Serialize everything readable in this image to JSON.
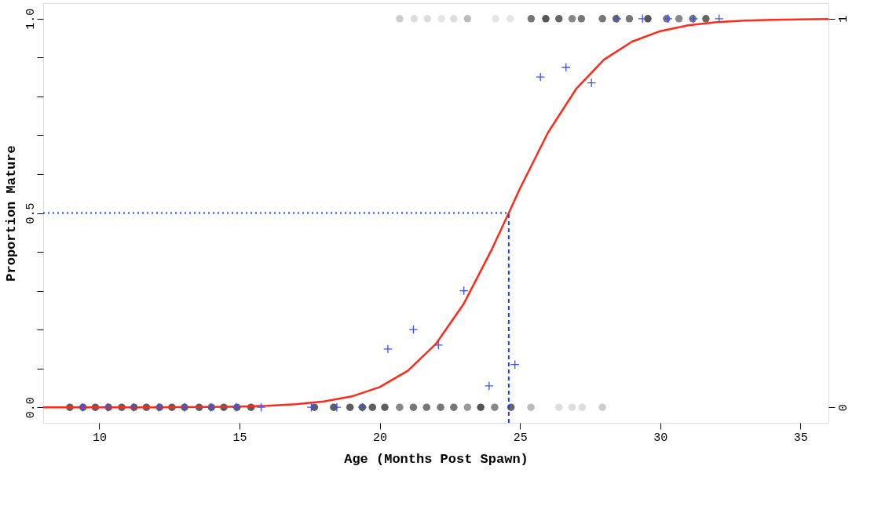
{
  "chart_data": {
    "type": "scatter",
    "xlabel": "Age (Months Post Spawn)",
    "ylabel": "Proportion Mature",
    "xlim": [
      8,
      36
    ],
    "xticks": [
      10,
      15,
      20,
      25,
      30,
      35
    ],
    "ylim": [
      -0.04,
      1.04
    ],
    "yticks": [
      {
        "value": 0,
        "label": "0.0"
      },
      {
        "value": 0.1,
        "label": null
      },
      {
        "value": 0.2,
        "label": null
      },
      {
        "value": 0.3,
        "label": null
      },
      {
        "value": 0.4,
        "label": null
      },
      {
        "value": 0.5,
        "label": "0.5"
      },
      {
        "value": 0.6,
        "label": null
      },
      {
        "value": 0.7,
        "label": null
      },
      {
        "value": 0.8,
        "label": null
      },
      {
        "value": 0.9,
        "label": null
      },
      {
        "value": 1,
        "label": "1.0"
      }
    ],
    "y2lim": [
      -0.04,
      1.04
    ],
    "y2ticks": [
      0,
      1
    ],
    "grid": false,
    "series": [
      {
        "marker": "circle",
        "x": [
          8.95,
          9.42,
          9.86,
          10.33,
          10.8,
          11.24,
          11.68,
          12.15,
          12.59,
          13.04,
          13.56,
          14.0,
          14.44,
          14.91,
          15.41,
          17.67,
          18.36,
          18.94,
          19.38,
          19.74,
          20.18,
          20.71,
          21.2,
          21.67,
          22.17,
          22.64,
          23.13,
          23.6,
          24.1,
          24.68,
          25.39,
          26.39,
          26.86,
          27.22,
          27.94,
          20.71,
          21.23,
          21.7,
          22.2,
          22.64,
          23.13,
          24.13,
          24.65,
          25.4,
          25.92,
          26.39,
          26.86,
          27.19,
          27.94,
          28.43,
          28.9,
          29.56,
          30.23,
          30.67,
          31.16,
          31.63
        ],
        "values": [
          0,
          0,
          0,
          0,
          0,
          0,
          0,
          0,
          0,
          0,
          0,
          0,
          0,
          0,
          0,
          0,
          0,
          0,
          0,
          0,
          0,
          0,
          0,
          0,
          0,
          0,
          0,
          0,
          0,
          0,
          0,
          0,
          0,
          0,
          0,
          1,
          1,
          1,
          1,
          1,
          1,
          1,
          1,
          1,
          1,
          1,
          1,
          1,
          1,
          1,
          1,
          1,
          1,
          1,
          1,
          1
        ],
        "colors": [
          "#5e5e5e",
          "#5e5e5e",
          "#5e5e5e",
          "#5e5e5e",
          "#5e5e5e",
          "#5e5e5e",
          "#5e5e5e",
          "#5e5e5e",
          "#5e5e5e",
          "#5e5e5e",
          "#5e5e5e",
          "#5e5e5e",
          "#5e5e5e",
          "#5e5e5e",
          "#5e5e5e",
          "#5e5e5e",
          "#5e5e5e",
          "#5e5e5e",
          "#5e5e5e",
          "#5e5e5e",
          "#5e5e5e",
          "#888888",
          "#777777",
          "#777777",
          "#777777",
          "#777777",
          "#999999",
          "#555555",
          "#888888",
          "#666666",
          "#bbbbbb",
          "#dddddd",
          "#dddddd",
          "#dddddd",
          "#cccccc",
          "#cccccc",
          "#dddddd",
          "#dddddd",
          "#e5e5e5",
          "#dddddd",
          "#bbbbbb",
          "#e5e5e5",
          "#e5e5e5",
          "#777777",
          "#555555",
          "#666666",
          "#888888",
          "#777777",
          "#777777",
          "#666666",
          "#777777",
          "#555555",
          "#777777",
          "#888888",
          "#777777",
          "#666666"
        ]
      },
      {
        "type": "line",
        "color": "#ff2a1a",
        "line_style": "solid",
        "marker": "none",
        "x": [
          8,
          10,
          12,
          14,
          15,
          16,
          17,
          18,
          19,
          20,
          21,
          22,
          23,
          24,
          24.6,
          25,
          26,
          27,
          28,
          29,
          30,
          31,
          32,
          33,
          34,
          36
        ],
        "values": [
          0.0,
          0.0,
          0.0,
          0.001,
          0.002,
          0.004,
          0.008,
          0.015,
          0.028,
          0.052,
          0.094,
          0.163,
          0.267,
          0.407,
          0.5,
          0.563,
          0.707,
          0.819,
          0.895,
          0.941,
          0.968,
          0.983,
          0.991,
          0.995,
          0.997,
          0.999
        ]
      },
      {
        "marker": "cross",
        "color": "#3a50ff",
        "x": [
          9.39,
          10.3,
          11.21,
          12.12,
          13.04,
          13.97,
          14.88,
          15.77,
          17.56,
          18.47,
          19.38,
          20.29,
          21.2,
          22.09,
          23.0,
          23.9,
          24.82,
          25.73,
          26.64,
          27.55,
          28.46,
          29.37,
          30.28,
          31.19,
          32.1
        ],
        "values": [
          0,
          0,
          0,
          0,
          0,
          0,
          0,
          0,
          0,
          0,
          0,
          0.15,
          0.2,
          0.16,
          0.3,
          0.055,
          0.11,
          0.85,
          0.875,
          0.835,
          1,
          1,
          1,
          1,
          1
        ]
      }
    ],
    "ref_lines": [
      {
        "axis": "y",
        "value": 0.5,
        "color": "#1a3cff",
        "line_style": "dotted"
      },
      {
        "axis": "x",
        "value": 24.6,
        "color": "#1a3cff",
        "line_style": "dashed"
      }
    ]
  }
}
